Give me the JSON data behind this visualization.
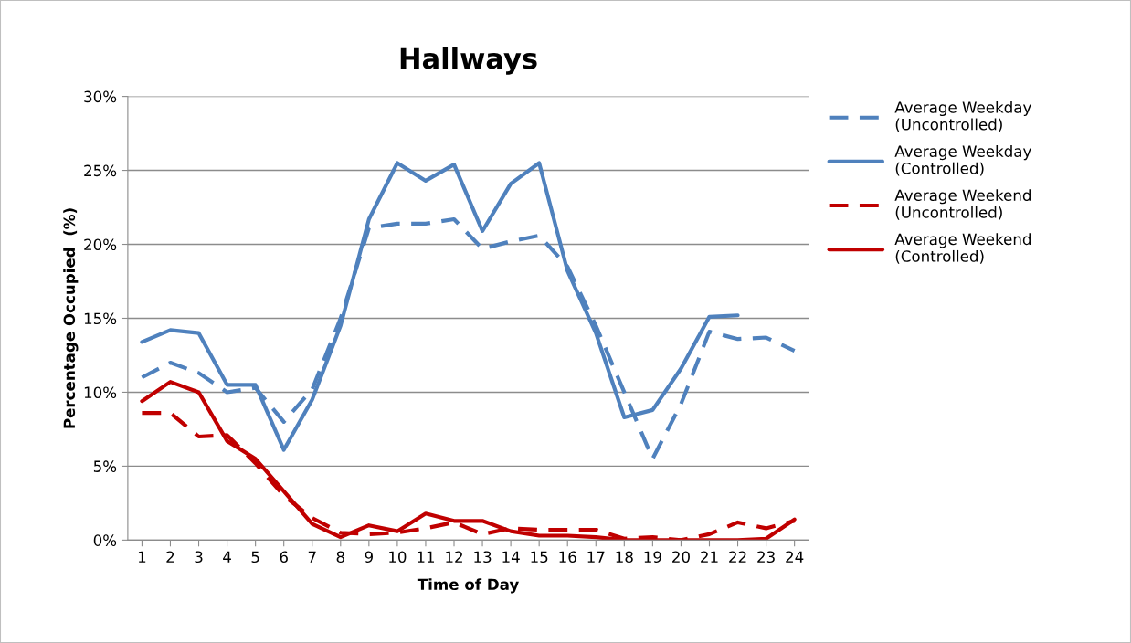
{
  "chart_data": {
    "type": "line",
    "title": "Hallways",
    "xlabel": "Time of Day",
    "ylabel": "Percentage Occupied  (%)",
    "categories": [
      "1",
      "2",
      "3",
      "4",
      "5",
      "6",
      "7",
      "8",
      "9",
      "10",
      "11",
      "12",
      "13",
      "14",
      "15",
      "16",
      "17",
      "18",
      "19",
      "20",
      "21",
      "22",
      "23",
      "24"
    ],
    "ylim": [
      0,
      30
    ],
    "yticks": [
      {
        "value": 0,
        "label": "0%"
      },
      {
        "value": 5,
        "label": "5%"
      },
      {
        "value": 10,
        "label": "10%"
      },
      {
        "value": 15,
        "label": "15%"
      },
      {
        "value": 20,
        "label": "20%"
      },
      {
        "value": 25,
        "label": "25%"
      },
      {
        "value": 30,
        "label": "30%"
      }
    ],
    "grid": "y",
    "legend": "top right",
    "marker": "none",
    "series": [
      {
        "name": "Average Weekday\n(Uncontrolled)",
        "color": "#4f81bd",
        "line_style": "dashed",
        "values": [
          11.0,
          12.0,
          11.3,
          10.0,
          10.3,
          8.0,
          10.2,
          15.0,
          21.1,
          21.4,
          21.4,
          21.7,
          19.7,
          20.2,
          20.6,
          18.5,
          14.5,
          10.0,
          5.5,
          9.2,
          14.1,
          13.6,
          13.7,
          12.8
        ]
      },
      {
        "name": "Average Weekday\n(Controlled)",
        "color": "#4f81bd",
        "line_style": "solid",
        "values": [
          13.4,
          14.2,
          14.0,
          10.5,
          10.5,
          6.1,
          9.5,
          14.5,
          21.7,
          25.5,
          24.3,
          25.4,
          20.9,
          24.1,
          25.5,
          18.2,
          14.0,
          8.3,
          8.8,
          11.6,
          15.1,
          15.2,
          null,
          null
        ]
      },
      {
        "name": "Average Weekend\n(Uncontrolled)",
        "color": "#c00000",
        "line_style": "dashed",
        "values": [
          8.6,
          8.6,
          7.0,
          7.1,
          5.2,
          3.0,
          1.5,
          0.5,
          0.4,
          0.5,
          0.8,
          1.2,
          0.4,
          0.8,
          0.7,
          0.7,
          0.7,
          0.1,
          0.2,
          0.0,
          0.4,
          1.2,
          0.8,
          1.3
        ]
      },
      {
        "name": "Average Weekend\n(Controlled)",
        "color": "#c00000",
        "line_style": "solid",
        "values": [
          9.4,
          10.7,
          10.0,
          6.7,
          5.5,
          3.3,
          1.1,
          0.2,
          1.0,
          0.6,
          1.8,
          1.3,
          1.3,
          0.6,
          0.3,
          0.3,
          0.2,
          0.0,
          0.0,
          0.0,
          0.0,
          0.0,
          0.1,
          1.4
        ]
      }
    ]
  }
}
